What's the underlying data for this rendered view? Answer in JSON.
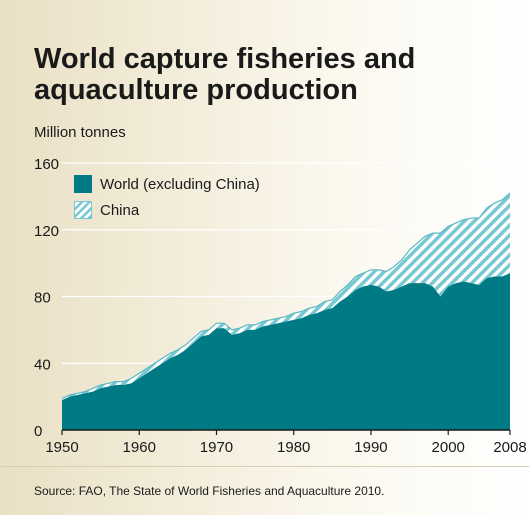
{
  "header": {
    "title": "World capture fisheries and aquaculture production",
    "units": "Million tonnes"
  },
  "legend": {
    "items": [
      {
        "label": "World (excluding China)",
        "color": "#007a84",
        "pattern": "solid"
      },
      {
        "label": "China",
        "color": "#76c8d2",
        "pattern": "hatch"
      }
    ]
  },
  "source": "Source: FAO, The State of World Fisheries and Aquaculture 2010.",
  "chart_data": {
    "type": "area",
    "stacked": true,
    "title": "World capture fisheries and aquaculture production",
    "ylabel": "Million tonnes",
    "xlabel": "",
    "xlim": [
      1950,
      2008
    ],
    "ylim": [
      0,
      160
    ],
    "x_ticks": [
      1950,
      1960,
      1970,
      1980,
      1990,
      2000,
      2008
    ],
    "y_ticks": [
      0,
      40,
      80,
      120,
      160
    ],
    "grid": "horizontal",
    "legend_position": "top-left",
    "x": [
      1950,
      1951,
      1952,
      1953,
      1954,
      1955,
      1956,
      1957,
      1958,
      1959,
      1960,
      1961,
      1962,
      1963,
      1964,
      1965,
      1966,
      1967,
      1968,
      1969,
      1970,
      1971,
      1972,
      1973,
      1974,
      1975,
      1976,
      1977,
      1978,
      1979,
      1980,
      1981,
      1982,
      1983,
      1984,
      1985,
      1986,
      1987,
      1988,
      1989,
      1990,
      1991,
      1992,
      1993,
      1994,
      1995,
      1996,
      1997,
      1998,
      1999,
      2000,
      2001,
      2002,
      2003,
      2004,
      2005,
      2006,
      2007,
      2008
    ],
    "series": [
      {
        "name": "World (excluding China)",
        "color": "#007a84",
        "values": [
          18,
          20,
          21,
          22,
          23,
          25,
          26,
          27,
          27,
          28,
          31,
          34,
          37,
          40,
          43,
          45,
          48,
          52,
          56,
          57,
          61,
          61,
          57,
          58,
          60,
          60,
          62,
          63,
          64,
          65,
          66,
          67,
          69,
          70,
          72,
          73,
          77,
          80,
          84,
          86,
          87,
          86,
          83,
          84,
          86,
          88,
          88,
          88,
          86,
          80,
          86,
          88,
          89,
          88,
          87,
          91,
          92,
          92,
          94
        ]
      },
      {
        "name": "China",
        "color": "#76c8d2",
        "pattern": "hatch",
        "values": [
          1,
          1,
          1,
          1,
          2,
          2,
          2,
          2,
          2,
          3,
          3,
          3,
          3,
          3,
          3,
          3,
          3,
          3,
          3,
          3,
          3,
          3,
          3,
          3,
          3,
          3,
          3,
          3,
          3,
          3,
          4,
          4,
          4,
          4,
          5,
          5,
          6,
          7,
          8,
          8,
          9,
          10,
          12,
          14,
          16,
          20,
          24,
          28,
          32,
          38,
          36,
          36,
          37,
          39,
          40,
          42,
          44,
          46,
          48
        ]
      }
    ]
  }
}
